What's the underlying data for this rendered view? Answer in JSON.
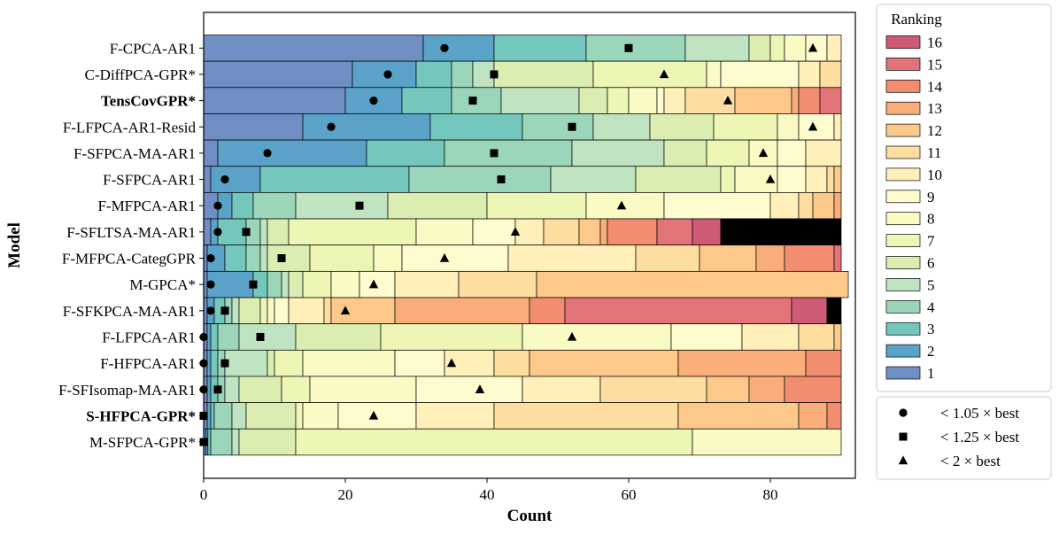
{
  "chart_data": {
    "type": "bar",
    "orientation": "horizontal",
    "stacked": true,
    "xlabel": "Count",
    "ylabel": "Model",
    "xlim": [
      0,
      92
    ],
    "xticks": [
      0,
      20,
      40,
      60,
      80
    ],
    "grid": false,
    "legend_title": "Ranking",
    "legend_position": "right",
    "rank_colors": {
      "1": "#6e8ec4",
      "2": "#5ba2c8",
      "3": "#74c7bd",
      "4": "#9bd6bb",
      "5": "#c0e4c1",
      "6": "#dbedb1",
      "7": "#eef6b6",
      "8": "#fafbc4",
      "9": "#fefbcf",
      "10": "#ffefb8",
      "11": "#fedea0",
      "12": "#fdc98a",
      "13": "#f9ad79",
      "14": "#f28e6f",
      "15": "#e27379",
      "16": "#cf5a76"
    },
    "models": [
      {
        "name": "F-CPCA-AR1",
        "bold": false,
        "segments": [
          31,
          10,
          13,
          14,
          9,
          3,
          2,
          3,
          3,
          2
        ],
        "markers": {
          "circle": 34,
          "square": 60,
          "triangle": 86
        }
      },
      {
        "name": "C-DiffPCA-GPR*",
        "bold": false,
        "segments": [
          21,
          9,
          5,
          3,
          3,
          14,
          16,
          2,
          11,
          3,
          3
        ],
        "markers": {
          "circle": 26,
          "square": 41,
          "triangle": 65
        }
      },
      {
        "name": "TensCovGPR*",
        "bold": true,
        "segments": [
          20,
          8,
          7,
          7,
          11,
          4,
          3,
          4,
          1,
          3,
          7,
          8,
          1,
          3,
          3
        ],
        "markers": {
          "circle": 24,
          "square": 38,
          "triangle": 74
        }
      },
      {
        "name": "F-LFPCA-AR1-Resid",
        "bold": false,
        "segments": [
          14,
          18,
          13,
          10,
          8,
          9,
          9,
          3,
          5,
          1
        ],
        "markers": {
          "circle": 18,
          "square": 52,
          "triangle": 86
        }
      },
      {
        "name": "F-SFPCA-MA-AR1",
        "bold": false,
        "segments": [
          2,
          21,
          11,
          18,
          13,
          6,
          6,
          4,
          4,
          5
        ],
        "markers": {
          "circle": 9,
          "square": 41,
          "triangle": 79
        }
      },
      {
        "name": "F-SFPCA-AR1",
        "bold": false,
        "segments": [
          1,
          7,
          21,
          20,
          12,
          12,
          2,
          6,
          4,
          3,
          1,
          1
        ],
        "markers": {
          "circle": 3,
          "square": 42,
          "triangle": 80
        }
      },
      {
        "name": "F-MFPCA-AR1",
        "bold": false,
        "segments": [
          2,
          2,
          3,
          6,
          13,
          14,
          14,
          11,
          15,
          4,
          2,
          3,
          1
        ],
        "markers": {
          "circle": 2,
          "square": 22,
          "triangle": 59
        }
      },
      {
        "name": "F-SFLTSA-MA-AR1",
        "bold": false,
        "segments": [
          1,
          1,
          4,
          2,
          1,
          3,
          18,
          8,
          6,
          4,
          5,
          3,
          1,
          7,
          5,
          4,
          17
        ],
        "markers": {
          "circle": 2,
          "square": 6,
          "triangle": 44
        }
      },
      {
        "name": "F-MFPCA-CategGPR",
        "bold": false,
        "segments": [
          0.5,
          2.5,
          3,
          2,
          1,
          6,
          9,
          4,
          15,
          18,
          9,
          8,
          4,
          7,
          1
        ],
        "markers": {
          "circle": 1,
          "square": 11,
          "triangle": 34
        }
      },
      {
        "name": "M-GPCA*",
        "bold": false,
        "segments": [
          0.5,
          6.5,
          2,
          2,
          1,
          2,
          4,
          4,
          5,
          9,
          11,
          44
        ],
        "markers": {
          "circle": 1,
          "square": 7,
          "triangle": 24
        }
      },
      {
        "name": "F-SFKPCA-MA-AR1",
        "bold": false,
        "segments": [
          0.5,
          1,
          1.5,
          1,
          1,
          3,
          1,
          1,
          2,
          5,
          1,
          9,
          19,
          5,
          32,
          5,
          2
        ],
        "markers": {
          "circle": 1,
          "square": 3,
          "triangle": 20
        }
      },
      {
        "name": "F-LFPCA-AR1",
        "bold": false,
        "segments": [
          0.5,
          0.5,
          1,
          3,
          8,
          12,
          20,
          21,
          10,
          8,
          5,
          1
        ],
        "markers": {
          "circle": 0,
          "square": 8,
          "triangle": 52
        }
      },
      {
        "name": "F-HFPCA-AR1",
        "bold": false,
        "segments": [
          0.5,
          0.5,
          1,
          1,
          6,
          1,
          4,
          13,
          7,
          7,
          5,
          21,
          18,
          5
        ],
        "markers": {
          "circle": 0,
          "square": 3,
          "triangle": 35
        }
      },
      {
        "name": "F-SFIsomap-MA-AR1",
        "bold": false,
        "segments": [
          0.5,
          0.5,
          1,
          1,
          2,
          6,
          4,
          15,
          15,
          11,
          15,
          6,
          5,
          8
        ],
        "markers": {
          "circle": 0,
          "square": 2,
          "triangle": 39
        }
      },
      {
        "name": "S-HFPCA-GPR*",
        "bold": true,
        "segments": [
          0.5,
          0.5,
          0.5,
          2.5,
          2,
          7,
          1,
          5,
          11,
          11,
          26,
          17,
          4,
          2
        ],
        "markers": {
          "circle": 0,
          "square": 0,
          "triangle": 24
        }
      },
      {
        "name": "M-SFPCA-GPR*",
        "bold": false,
        "segments": [
          0.3,
          0.3,
          0.4,
          3,
          1,
          8,
          56,
          21
        ],
        "markers": {
          "circle": null,
          "square": 0,
          "triangle": null
        }
      }
    ],
    "marker_legend": [
      {
        "shape": "circle",
        "label": "< 1.05 × best"
      },
      {
        "shape": "square",
        "label": "< 1.25 × best"
      },
      {
        "shape": "triangle",
        "label": "< 2 × best"
      }
    ]
  }
}
